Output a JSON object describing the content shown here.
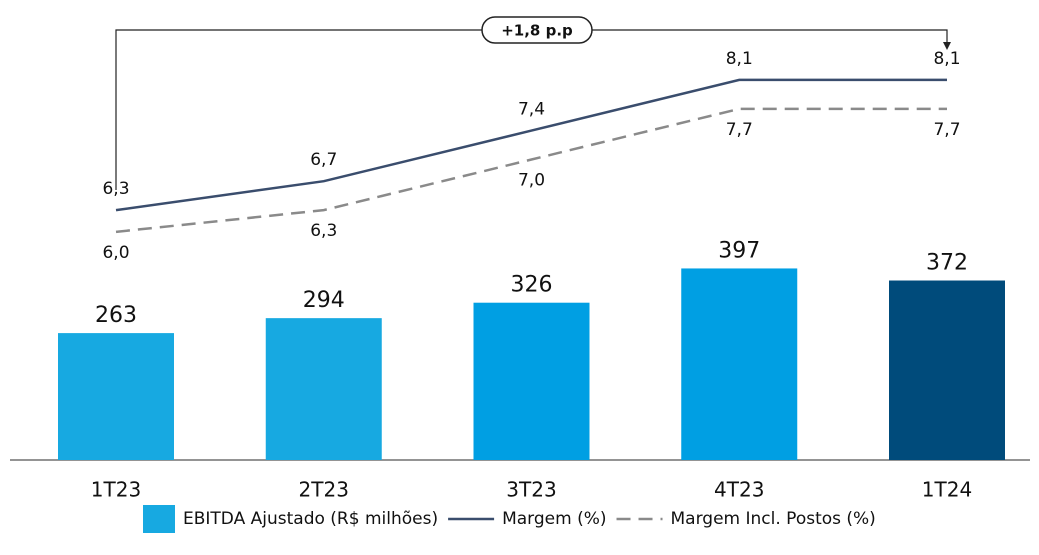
{
  "chart_data": {
    "type": "combo",
    "categories": [
      "1T23",
      "2T23",
      "3T23",
      "4T23",
      "1T24"
    ],
    "annotation": "+1,8 p.p",
    "ylim": [
      0,
      400
    ],
    "y2lim": [
      5.5,
      8.5
    ],
    "series": [
      {
        "name": "EBITDA Ajustado (R$ milhões)",
        "type": "bar",
        "colors": [
          "#17a9e1",
          "#17a9e1",
          "#009fe3",
          "#009fe3",
          "#004b7b"
        ],
        "values": [
          263,
          294,
          326,
          397,
          372
        ]
      },
      {
        "name": "Margem (%)",
        "type": "line",
        "axis": "y2",
        "color": "#3a4d6d",
        "dashed": false,
        "values": [
          6.3,
          6.7,
          7.4,
          8.1,
          8.1
        ],
        "value_labels": [
          "6,3",
          "6,7",
          "7,4",
          "8,1",
          "8,1"
        ]
      },
      {
        "name": "Margem Incl. Postos (%)",
        "type": "line",
        "axis": "y2",
        "color": "#8a8a8a",
        "dashed": true,
        "values": [
          6.0,
          6.3,
          7.0,
          7.7,
          7.7
        ],
        "value_labels": [
          "6,0",
          "6,3",
          "7,0",
          "7,7",
          "7,7"
        ]
      }
    ]
  }
}
